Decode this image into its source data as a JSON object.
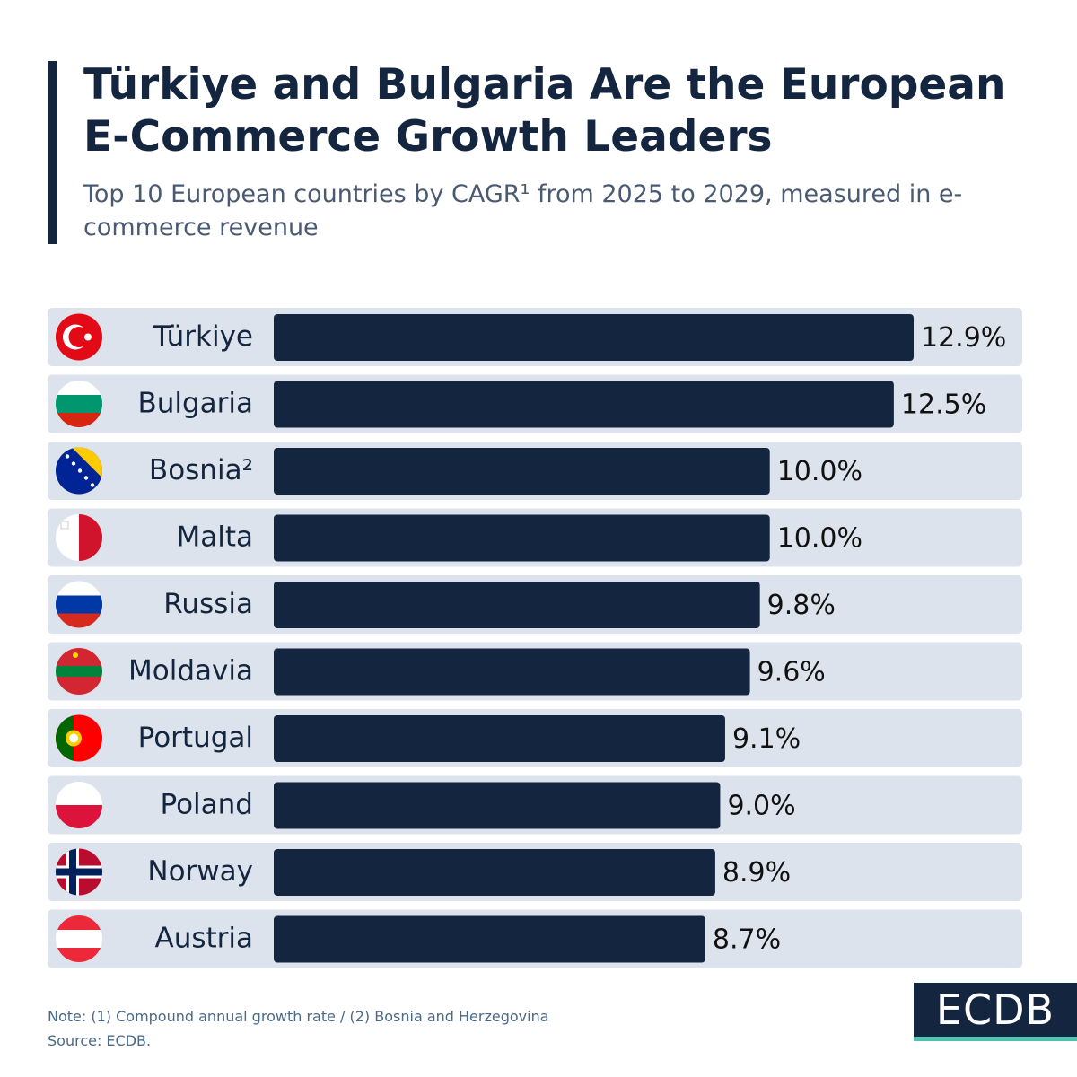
{
  "title": "Türkiye and Bulgaria Are the European E-Commerce Growth Leaders",
  "subtitle": "Top 10 European countries by CAGR¹ from 2025 to 2029, measured in e-commerce revenue",
  "chart_data": {
    "type": "bar",
    "orientation": "horizontal",
    "color": "#14263f",
    "categories": [
      "Türkiye",
      "Bulgaria",
      "Bosnia²",
      "Malta",
      "Russia",
      "Moldavia",
      "Portugal",
      "Poland",
      "Norway",
      "Austria"
    ],
    "values": [
      12.9,
      12.5,
      10.0,
      10.0,
      9.8,
      9.6,
      9.1,
      9.0,
      8.9,
      8.7
    ],
    "value_labels": [
      "12.9%",
      "12.5%",
      "10.0%",
      "10.0%",
      "9.8%",
      "9.6%",
      "9.1%",
      "9.0%",
      "8.9%",
      "8.7%"
    ]
  },
  "note": "Note: (1) Compound annual growth rate / (2) Bosnia and Herzegovina",
  "source": "Source: ECDB.",
  "logo": "ECDB"
}
